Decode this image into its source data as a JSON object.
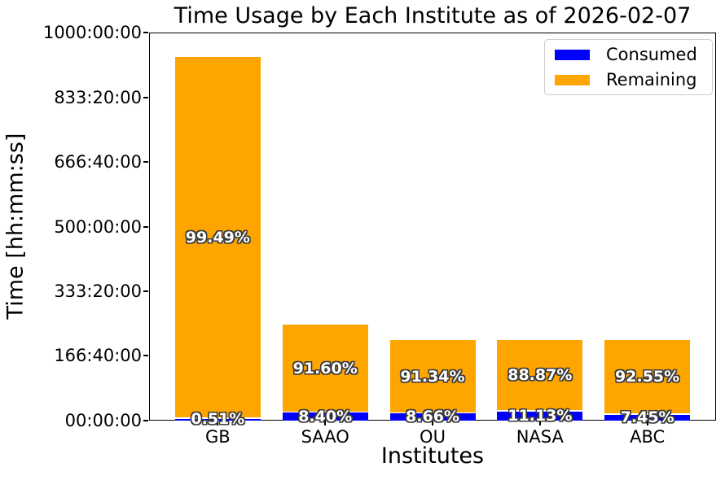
{
  "chart_data": {
    "type": "bar",
    "stacked": true,
    "title": "Time Usage by Each Institute as of 2026-02-07",
    "xlabel": "Institutes",
    "ylabel": "Time [hh:mm:ss]",
    "categories": [
      "GB",
      "SAAO",
      "OU",
      "NASA",
      "ABC"
    ],
    "y_axis": {
      "unit": "hours",
      "ylim_hours": [
        0,
        1000
      ],
      "tick_labels": [
        "00:00:00",
        "166:40:00",
        "333:20:00",
        "500:00:00",
        "666:40:00",
        "833:20:00",
        "1000:00:00"
      ],
      "tick_values_hours": [
        0,
        166.6667,
        333.3333,
        500,
        666.6667,
        833.3333,
        1000
      ],
      "grid": false
    },
    "totals_hours_est": [
      937.1,
      246.7,
      208.2,
      208.2,
      207.0
    ],
    "series": [
      {
        "name": "Consumed",
        "color": "#0000ff",
        "percent": [
          0.51,
          8.4,
          8.66,
          11.13,
          7.45
        ],
        "labels": [
          "0.51%",
          "8.40%",
          "8.66%",
          "11.13%",
          "7.45%"
        ],
        "values_hours_est": [
          4.8,
          20.7,
          18.0,
          23.2,
          15.4
        ]
      },
      {
        "name": "Remaining",
        "color": "#ffa500",
        "percent": [
          99.49,
          91.6,
          91.34,
          88.87,
          92.55
        ],
        "labels": [
          "99.49%",
          "91.60%",
          "91.34%",
          "88.87%",
          "92.55%"
        ],
        "values_hours_est": [
          932.3,
          226.0,
          190.2,
          185.0,
          191.6
        ]
      }
    ],
    "legend": {
      "position": "upper right",
      "entries": [
        "Consumed",
        "Remaining"
      ]
    }
  }
}
